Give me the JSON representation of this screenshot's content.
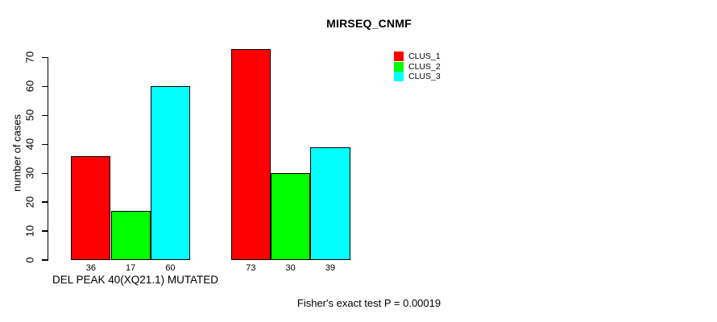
{
  "chart_data": {
    "type": "bar",
    "title": "MIRSEQ_CNMF",
    "ylabel": "number of cases",
    "xlabel": "DEL PEAK 40(XQ21.1) MUTATED",
    "annotation": "Fisher's exact test P = 0.00019",
    "ylim": [
      0,
      73
    ],
    "y_ticks": [
      0,
      10,
      20,
      30,
      40,
      50,
      60,
      70
    ],
    "grid": false,
    "legend_position": "top-right",
    "bar_value_labels_shown": true,
    "series": [
      {
        "name": "CLUS_1",
        "color": "#ff0000",
        "values": [
          36,
          73
        ]
      },
      {
        "name": "CLUS_2",
        "color": "#00ff00",
        "values": [
          17,
          30
        ]
      },
      {
        "name": "CLUS_3",
        "color": "#00ffff",
        "values": [
          60,
          39
        ]
      }
    ]
  }
}
